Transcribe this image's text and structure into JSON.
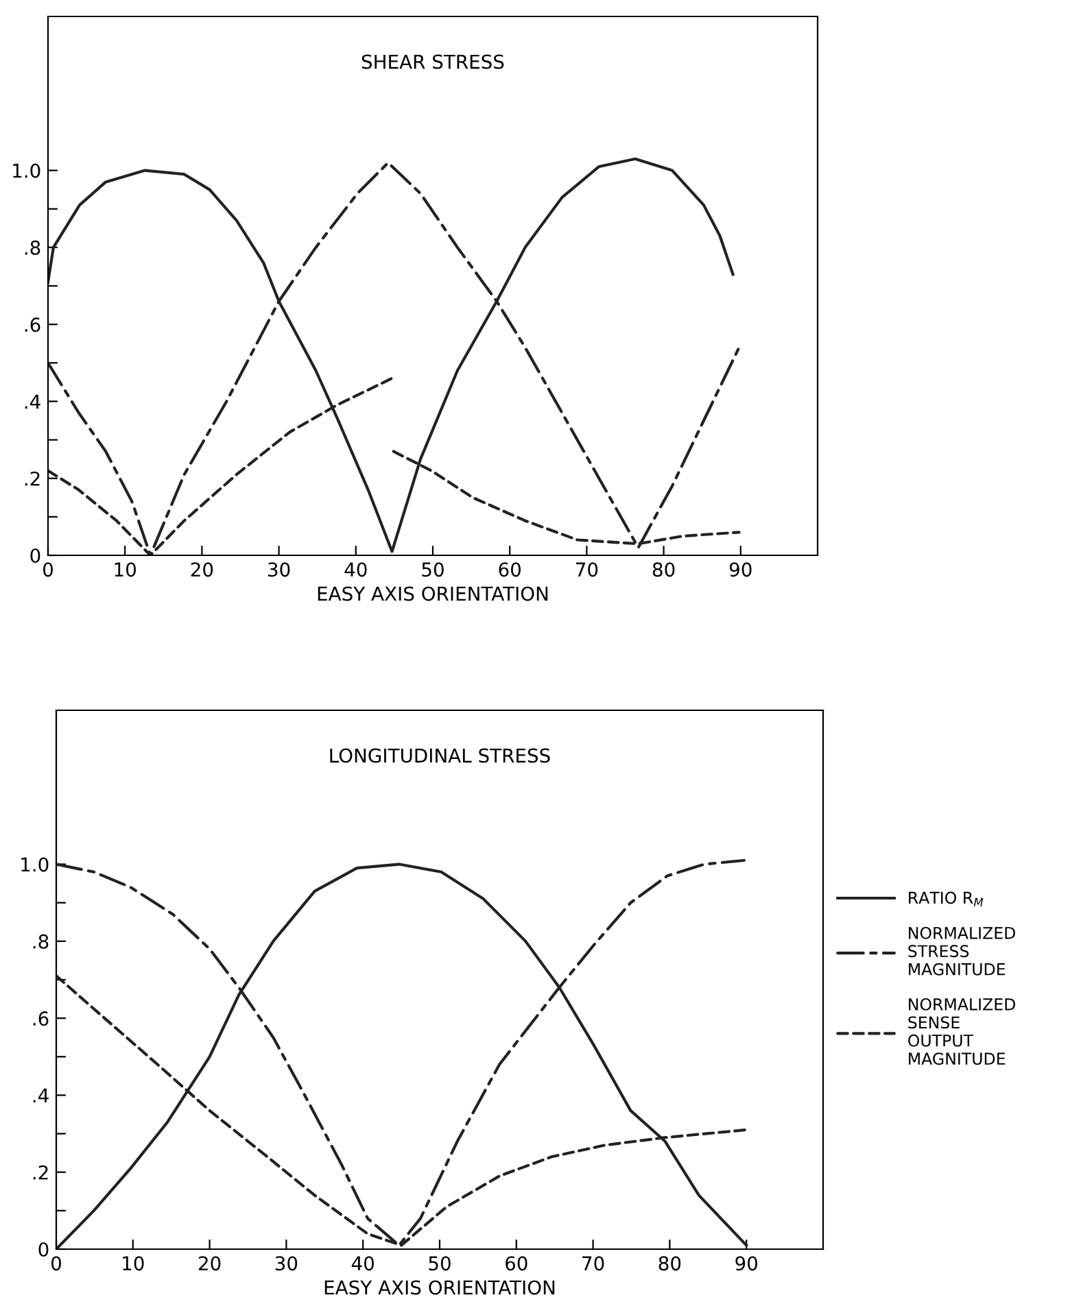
{
  "chart_data": [
    {
      "type": "line",
      "title": "SHEAR STRESS",
      "xlabel": "EASY AXIS ORIENTATION",
      "xlim": [
        0,
        100
      ],
      "ylim": [
        0,
        1.4
      ],
      "xticks": [
        0,
        10,
        20,
        30,
        40,
        50,
        60,
        70,
        80,
        90
      ],
      "yticks": [
        {
          "value": 0,
          "label": "0"
        },
        {
          "value": 0.1,
          "label": null
        },
        {
          "value": 0.2,
          "label": ".2"
        },
        {
          "value": 0.3,
          "label": null
        },
        {
          "value": 0.4,
          "label": ".4"
        },
        {
          "value": 0.5,
          "label": null
        },
        {
          "value": 0.6,
          "label": ".6"
        },
        {
          "value": 0.7,
          "label": null
        },
        {
          "value": 0.8,
          "label": ".8"
        },
        {
          "value": 0.9,
          "label": null
        },
        {
          "value": 1.0,
          "label": "1.0"
        }
      ],
      "grid": false,
      "legend": false,
      "marker": "none",
      "series": [
        {
          "color": "#222222",
          "line_style": "solid",
          "x": [
            0,
            0.7,
            4.1,
            7.5,
            12.6,
            17.7,
            21,
            24.5,
            28,
            30,
            34.8,
            37.5,
            41.6,
            44.7,
            48.4,
            53.2,
            58.3,
            62,
            66.8,
            71.6,
            76.3,
            81.1,
            85.2,
            87.3,
            89
          ],
          "values": [
            0.71,
            0.8,
            0.91,
            0.97,
            1.0,
            0.99,
            0.95,
            0.87,
            0.76,
            0.66,
            0.48,
            0.36,
            0.17,
            0.01,
            0.25,
            0.48,
            0.66,
            0.8,
            0.93,
            1.01,
            1.03,
            1.0,
            0.91,
            0.83,
            0.73
          ]
        },
        {
          "color": "#222222",
          "line_style": "dashdot",
          "x": [
            0,
            4,
            7.5,
            10.9,
            13.3,
            17.7,
            23.2,
            30,
            34.8,
            40.2,
            44.2,
            48.4,
            53.2,
            58.3,
            62,
            66.8,
            71.6,
            76.7,
            81.1,
            85.2,
            89.8
          ],
          "values": [
            0.5,
            0.37,
            0.27,
            0.14,
            0.0,
            0.21,
            0.4,
            0.66,
            0.8,
            0.94,
            1.02,
            0.94,
            0.8,
            0.66,
            0.54,
            0.37,
            0.2,
            0.02,
            0.18,
            0.35,
            0.54
          ]
        },
        {
          "color": "#222222",
          "line_style": "dashed",
          "x": [
            0,
            4,
            8.9,
            13.3,
            17.7,
            24.5,
            31.4,
            37.5,
            44.7,
            44.8,
            44.9,
            49.8,
            55.2,
            62,
            68.8,
            76.7,
            82.5,
            89.8
          ],
          "values": [
            0.22,
            0.17,
            0.09,
            0.0,
            0.09,
            0.21,
            0.32,
            0.39,
            0.46,
            null,
            0.27,
            0.22,
            0.15,
            0.09,
            0.04,
            0.03,
            0.05,
            0.06
          ]
        }
      ]
    },
    {
      "type": "line",
      "title": "LONGITUDINAL STRESS",
      "xlabel": "EASY AXIS ORIENTATION",
      "xlim": [
        0,
        100
      ],
      "ylim": [
        0,
        1.4
      ],
      "xticks": [
        0,
        10,
        20,
        30,
        40,
        50,
        60,
        70,
        80,
        90
      ],
      "yticks": [
        {
          "value": 0,
          "label": "0"
        },
        {
          "value": 0.1,
          "label": null
        },
        {
          "value": 0.2,
          "label": ".2"
        },
        {
          "value": 0.3,
          "label": null
        },
        {
          "value": 0.4,
          "label": ".4"
        },
        {
          "value": 0.5,
          "label": null
        },
        {
          "value": 0.6,
          "label": ".6"
        },
        {
          "value": 0.7,
          "label": null
        },
        {
          "value": 0.8,
          "label": ".8"
        },
        {
          "value": 0.9,
          "label": null
        },
        {
          "value": 1.0,
          "label": "1.0"
        }
      ],
      "grid": false,
      "legend": "right",
      "marker": "none",
      "series": [
        {
          "name": "RATIO R$_{M}$",
          "color": "#222222",
          "line_style": "solid",
          "x": [
            0,
            4.9,
            9.7,
            14.5,
            20,
            23.8,
            28.3,
            33.7,
            39.2,
            44.7,
            50.2,
            55.7,
            61.2,
            65.6,
            70.1,
            74.9,
            79.4,
            83.8,
            90
          ],
          "values": [
            0,
            0.1,
            0.21,
            0.33,
            0.5,
            0.66,
            0.8,
            0.93,
            0.99,
            1.0,
            0.98,
            0.91,
            0.8,
            0.68,
            0.53,
            0.36,
            0.28,
            0.14,
            0.01
          ]
        },
        {
          "name": "NORMALIZED\nSTRESS\nMAGNITUDE",
          "color": "#222222",
          "line_style": "dashdot",
          "x": [
            0,
            4.9,
            9.7,
            15.2,
            20,
            23.8,
            28.3,
            32.4,
            37.2,
            40.6,
            44.7,
            47.5,
            52.3,
            57.8,
            65.6,
            70.1,
            74.9,
            79.7,
            84.5,
            89.7
          ],
          "values": [
            1.0,
            0.98,
            0.94,
            0.87,
            0.78,
            0.68,
            0.55,
            0.4,
            0.22,
            0.08,
            0.01,
            0.08,
            0.28,
            0.48,
            0.68,
            0.79,
            0.9,
            0.97,
            1.0,
            1.01
          ]
        },
        {
          "name": "NORMALIZED\nSENSE\nOUTPUT\nMAGNITUDE",
          "color": "#222222",
          "line_style": "dashed",
          "x": [
            0,
            6.3,
            13.2,
            20,
            26.9,
            33.7,
            40.6,
            45,
            50.9,
            57.8,
            64.6,
            71.5,
            79.4,
            90
          ],
          "values": [
            0.71,
            0.6,
            0.48,
            0.36,
            0.25,
            0.14,
            0.04,
            0.01,
            0.11,
            0.19,
            0.24,
            0.27,
            0.29,
            0.31
          ]
        }
      ]
    }
  ]
}
